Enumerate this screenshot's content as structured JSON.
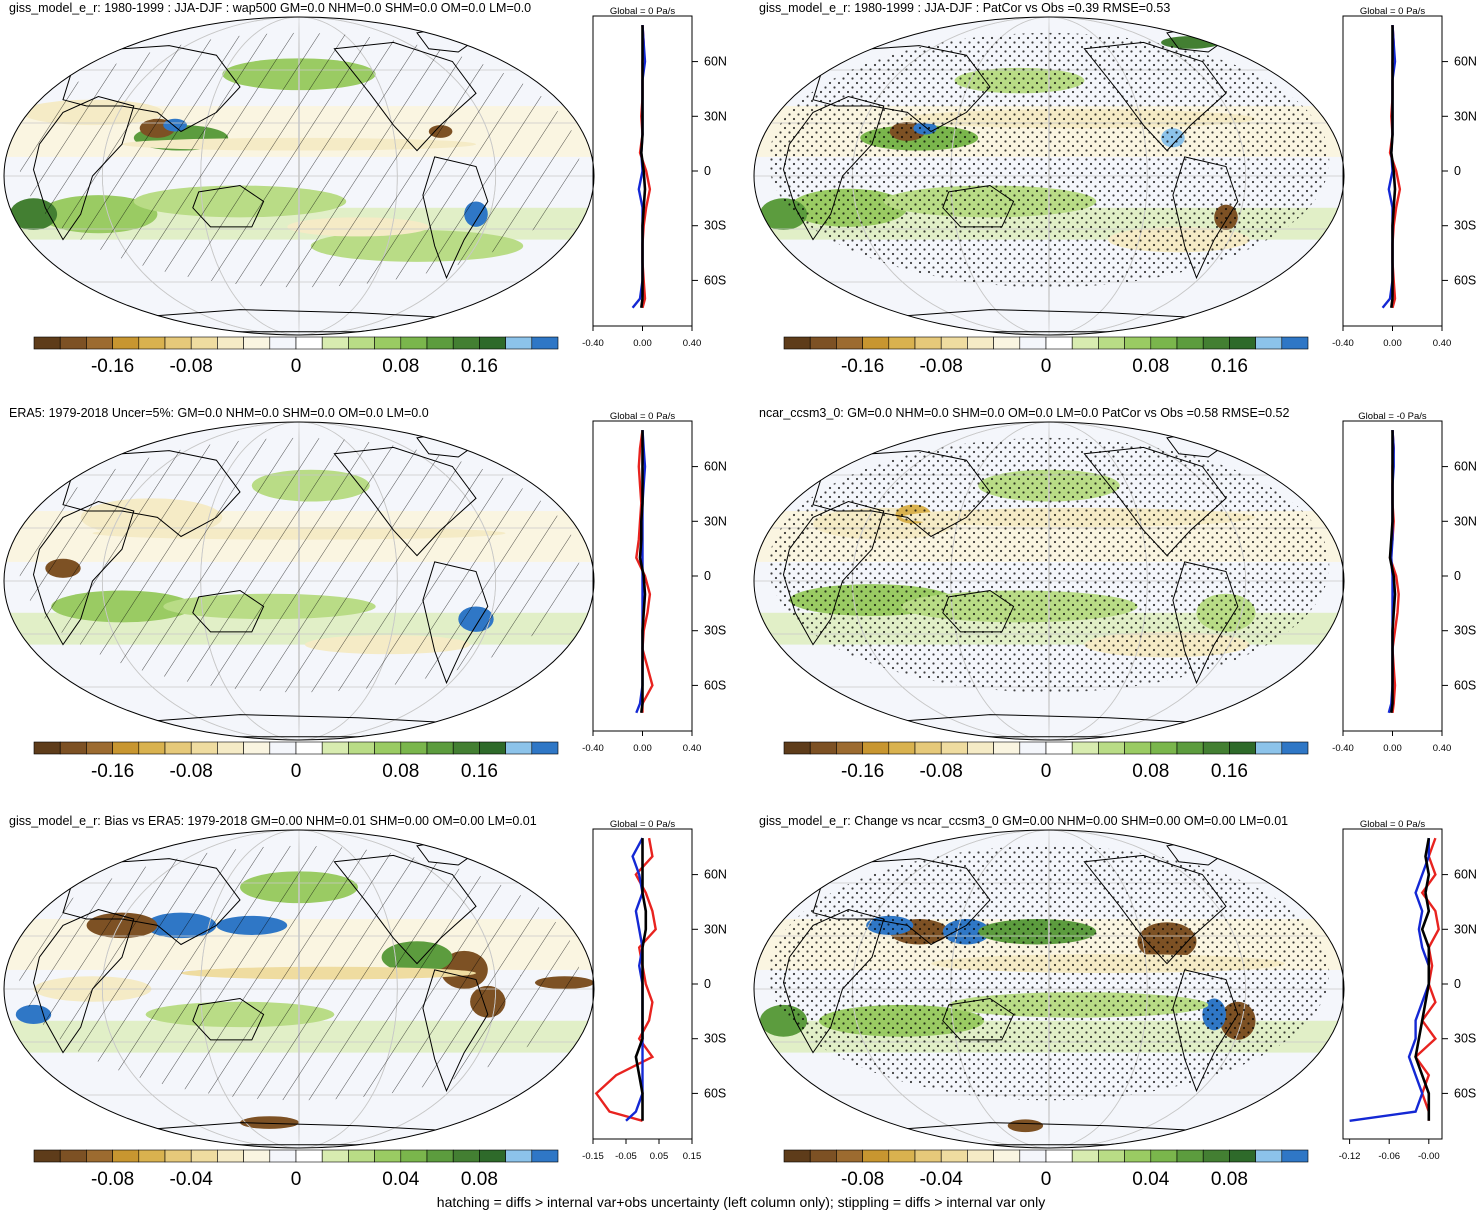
{
  "footer_note": "hatching = diffs > internal var+obs uncertainty (left column only); stippling = diffs > internal var only",
  "colorbar_colors": [
    "#5e3c1a",
    "#7d5124",
    "#9c6b30",
    "#c89630",
    "#d9b24f",
    "#e6c97a",
    "#efdca0",
    "#f5ebc6",
    "#faf5e1",
    "#f4f6fb",
    "#ffffff",
    "#d8ecb0",
    "#b9dc86",
    "#9acb63",
    "#7ab64c",
    "#5c9c3e",
    "#437f32",
    "#2e6a2a",
    "#8cc3ea",
    "#2f77c6"
  ],
  "colors": {
    "obs_line": "#e8231f",
    "model_line": "#1428d4",
    "mean_line": "#000000",
    "coast": "#000000",
    "grid": "#c8c8c8"
  },
  "panels": [
    {
      "title": "giss_model_e_r: 1980-1999 : JJA-DJF : wap500 GM=0.0 NHM=0.0 SHM=0.0 OM=0.0 LM=0.0",
      "pattern": "hatching",
      "side_title": "Global = 0 Pa/s",
      "colorbar_labels": [
        "-0.16",
        "-0.08",
        "0",
        "0.08",
        "0.16"
      ],
      "zonal_xticks": [
        "-0.40",
        "0.00",
        "0.40"
      ],
      "lat_labels": [
        "60N",
        "30N",
        "0",
        "30S",
        "60S"
      ]
    },
    {
      "title": "giss_model_e_r: 1980-1999 : JJA-DJF : PatCor vs Obs =0.39 RMSE=0.53",
      "pattern": "stippling",
      "side_title": "Global = 0 Pa/s",
      "colorbar_labels": [
        "-0.16",
        "-0.08",
        "0",
        "0.08",
        "0.16"
      ],
      "zonal_xticks": [
        "-0.40",
        "0.00",
        "0.40"
      ],
      "lat_labels": [
        "60N",
        "30N",
        "0",
        "30S",
        "60S"
      ]
    },
    {
      "title": "ERA5: 1979-2018 Uncer=5%: GM=0.0 NHM=0.0 SHM=0.0 OM=0.0 LM=0.0",
      "pattern": "hatching",
      "side_title": "Global = 0 Pa/s",
      "colorbar_labels": [
        "-0.16",
        "-0.08",
        "0",
        "0.08",
        "0.16"
      ],
      "zonal_xticks": [
        "-0.40",
        "0.00",
        "0.40"
      ],
      "lat_labels": [
        "60N",
        "30N",
        "0",
        "30S",
        "60S"
      ]
    },
    {
      "title": "ncar_ccsm3_0: GM=0.0 NHM=0.0 SHM=0.0 OM=0.0 LM=0.0 PatCor vs Obs =0.58 RMSE=0.52",
      "pattern": "stippling",
      "side_title": "Global = -0 Pa/s",
      "colorbar_labels": [
        "-0.16",
        "-0.08",
        "0",
        "0.08",
        "0.16"
      ],
      "zonal_xticks": [
        "-0.40",
        "0.00",
        "0.40"
      ],
      "lat_labels": [
        "60N",
        "30N",
        "0",
        "30S",
        "60S"
      ]
    },
    {
      "title": "giss_model_e_r: Bias vs ERA5: 1979-2018 GM=0.00 NHM=0.01 SHM=0.00 OM=0.00 LM=0.01",
      "pattern": "hatching",
      "side_title": "Global = 0 Pa/s",
      "colorbar_labels": [
        "-0.08",
        "-0.04",
        "0",
        "0.04",
        "0.08"
      ],
      "zonal_xticks": [
        "-0.15",
        "-0.05",
        "0.05",
        "0.15"
      ],
      "lat_labels": [
        "60N",
        "30N",
        "0",
        "30S",
        "60S"
      ]
    },
    {
      "title": "giss_model_e_r: Change vs ncar_ccsm3_0 GM=0.00 NHM=0.00 SHM=0.00 OM=0.00 LM=0.01",
      "pattern": "stippling",
      "side_title": "Global = 0 Pa/s",
      "colorbar_labels": [
        "-0.08",
        "-0.04",
        "0",
        "0.04",
        "0.08"
      ],
      "zonal_xticks": [
        "-0.12",
        "-0.06",
        "-0.00"
      ],
      "lat_labels": [
        "60N",
        "30N",
        "0",
        "30S",
        "60S"
      ]
    }
  ],
  "chart_data": [
    {
      "type": "line",
      "title": "Global = 0 Pa/s",
      "xlim": [
        -0.4,
        0.4
      ],
      "xticks": [
        -0.4,
        0,
        0.4
      ],
      "ylabel": "",
      "yticks": [
        "60N",
        "30N",
        "0",
        "30S",
        "60S"
      ],
      "lat": [
        80,
        70,
        60,
        50,
        40,
        30,
        20,
        10,
        0,
        -10,
        -20,
        -30,
        -40,
        -50,
        -60,
        -70,
        -75
      ],
      "series": [
        {
          "values": [
            0.0,
            0.01,
            0.0,
            0.0,
            0.0,
            -0.01,
            0.0,
            -0.02,
            0.03,
            0.06,
            0.03,
            0.01,
            0.0,
            0.0,
            0.01,
            0.02,
            0.0
          ]
        },
        {
          "values": [
            0.0,
            0.01,
            0.02,
            0.0,
            0.0,
            0.0,
            0.0,
            -0.01,
            0.0,
            -0.03,
            0.0,
            0.0,
            0.0,
            0.0,
            0.0,
            -0.02,
            -0.08
          ]
        },
        {
          "values": [
            0.0,
            0.0,
            0.0,
            0.0,
            0.0,
            0.0,
            0.0,
            -0.01,
            0.01,
            0.02,
            0.01,
            0.0,
            0.0,
            0.0,
            0.0,
            0.0,
            -0.01
          ]
        }
      ]
    },
    {
      "type": "line",
      "title": "Global = 0 Pa/s",
      "xlim": [
        -0.4,
        0.4
      ],
      "xticks": [
        -0.4,
        0,
        0.4
      ],
      "ylabel": "",
      "yticks": [
        "60N",
        "30N",
        "0",
        "30S",
        "60S"
      ],
      "lat": [
        80,
        70,
        60,
        50,
        40,
        30,
        20,
        10,
        0,
        -10,
        -20,
        -30,
        -40,
        -50,
        -60,
        -70,
        -75
      ],
      "series": [
        {
          "values": [
            0.0,
            0.01,
            0.0,
            0.0,
            0.0,
            -0.01,
            0.0,
            -0.02,
            0.03,
            0.06,
            0.03,
            0.01,
            0.0,
            0.0,
            0.01,
            0.02,
            0.0
          ]
        },
        {
          "values": [
            0.0,
            0.01,
            0.02,
            0.0,
            0.0,
            0.0,
            0.0,
            -0.01,
            0.0,
            -0.03,
            0.0,
            0.0,
            0.0,
            0.0,
            0.0,
            -0.02,
            -0.08
          ]
        },
        {
          "values": [
            0.0,
            0.0,
            0.0,
            0.0,
            0.0,
            0.0,
            0.0,
            -0.01,
            0.01,
            0.02,
            0.01,
            0.0,
            0.0,
            0.0,
            0.0,
            0.0,
            -0.01
          ]
        }
      ]
    },
    {
      "type": "line",
      "title": "Global = 0 Pa/s",
      "xlim": [
        -0.4,
        0.4
      ],
      "xticks": [
        -0.4,
        0,
        0.4
      ],
      "ylabel": "",
      "yticks": [
        "60N",
        "30N",
        "0",
        "30S",
        "60S"
      ],
      "lat": [
        80,
        70,
        60,
        50,
        40,
        30,
        20,
        10,
        0,
        -10,
        -20,
        -30,
        -40,
        -50,
        -60,
        -70,
        -75
      ],
      "series": [
        {
          "values": [
            0.0,
            -0.02,
            -0.03,
            -0.02,
            -0.01,
            -0.02,
            -0.03,
            -0.05,
            0.02,
            0.06,
            0.04,
            0.01,
            0.0,
            0.04,
            0.08,
            0.0,
            0.0
          ]
        },
        {
          "values": [
            0.0,
            0.01,
            0.02,
            0.01,
            0.0,
            0.0,
            0.0,
            0.0,
            0.0,
            0.0,
            0.0,
            0.0,
            0.0,
            0.0,
            0.0,
            -0.02,
            -0.05
          ]
        },
        {
          "values": [
            0.0,
            0.0,
            0.0,
            0.0,
            0.0,
            -0.01,
            -0.01,
            -0.02,
            0.01,
            0.02,
            0.01,
            0.0,
            0.0,
            0.0,
            0.0,
            0.0,
            -0.01
          ]
        }
      ]
    },
    {
      "type": "line",
      "title": "Global = -0 Pa/s",
      "xlim": [
        -0.4,
        0.4
      ],
      "xticks": [
        -0.4,
        0,
        0.4
      ],
      "ylabel": "",
      "yticks": [
        "60N",
        "30N",
        "0",
        "30S",
        "60S"
      ],
      "lat": [
        80,
        70,
        60,
        50,
        40,
        30,
        20,
        10,
        0,
        -10,
        -20,
        -30,
        -40,
        -50,
        -60,
        -70,
        -75
      ],
      "series": [
        {
          "values": [
            0.0,
            0.01,
            0.0,
            0.0,
            0.0,
            0.01,
            0.0,
            -0.02,
            0.03,
            0.05,
            0.04,
            0.02,
            0.0,
            0.01,
            0.02,
            0.01,
            0.0
          ]
        },
        {
          "values": [
            0.0,
            0.01,
            0.01,
            0.0,
            0.0,
            0.0,
            0.0,
            -0.01,
            0.0,
            0.0,
            0.0,
            0.0,
            0.0,
            0.0,
            0.0,
            -0.01,
            -0.03
          ]
        },
        {
          "values": [
            0.0,
            0.0,
            0.0,
            0.0,
            0.0,
            0.0,
            -0.01,
            -0.02,
            0.01,
            0.02,
            0.01,
            0.0,
            0.0,
            0.0,
            0.0,
            0.0,
            -0.01
          ]
        }
      ]
    },
    {
      "type": "line",
      "title": "Global = 0 Pa/s",
      "xlim": [
        -0.15,
        0.15
      ],
      "xticks": [
        -0.15,
        -0.05,
        0.05,
        0.15
      ],
      "ylabel": "",
      "yticks": [
        "60N",
        "30N",
        "0",
        "30S",
        "60S"
      ],
      "lat": [
        80,
        70,
        60,
        50,
        40,
        30,
        20,
        10,
        0,
        -10,
        -20,
        -30,
        -40,
        -50,
        -60,
        -70,
        -75
      ],
      "series": [
        {
          "values": [
            0.02,
            0.03,
            -0.02,
            0.01,
            0.03,
            0.04,
            -0.01,
            0.0,
            0.01,
            0.03,
            0.02,
            -0.01,
            0.03,
            -0.08,
            -0.14,
            -0.1,
            0.0
          ]
        },
        {
          "values": [
            0.0,
            -0.03,
            -0.01,
            0.0,
            -0.02,
            -0.01,
            0.0,
            -0.01,
            0.0,
            0.0,
            0.0,
            0.0,
            0.0,
            0.0,
            0.0,
            -0.02,
            -0.05
          ]
        },
        {
          "values": [
            0.0,
            0.0,
            0.0,
            0.0,
            0.01,
            0.01,
            0.0,
            0.0,
            0.0,
            0.0,
            0.0,
            0.0,
            -0.02,
            -0.01,
            0.0,
            0.0,
            0.0
          ]
        }
      ]
    },
    {
      "type": "line",
      "title": "Global = 0 Pa/s",
      "xlim": [
        -0.13,
        0.02
      ],
      "xticks": [
        -0.12,
        -0.06,
        -0.0
      ],
      "ylabel": "",
      "yticks": [
        "60N",
        "30N",
        "0",
        "30S",
        "60S"
      ],
      "lat": [
        80,
        70,
        60,
        50,
        40,
        30,
        20,
        10,
        0,
        -10,
        -20,
        -30,
        -40,
        -50,
        -60,
        -70,
        -75
      ],
      "series": [
        {
          "values": [
            0.01,
            0.0,
            0.01,
            -0.01,
            0.01,
            0.015,
            0.0,
            0.005,
            0.0,
            0.01,
            -0.01,
            0.01,
            -0.02,
            0.0,
            -0.01,
            0.0,
            0.0
          ]
        },
        {
          "values": [
            0.0,
            0.0,
            -0.01,
            -0.02,
            -0.01,
            -0.015,
            -0.01,
            0.0,
            0.0,
            -0.01,
            -0.02,
            -0.02,
            -0.03,
            -0.02,
            -0.01,
            -0.02,
            -0.12
          ]
        },
        {
          "values": [
            0.0,
            -0.005,
            0.0,
            -0.005,
            0.0,
            -0.01,
            0.0,
            0.0,
            0.0,
            -0.005,
            -0.01,
            -0.015,
            -0.02,
            -0.01,
            0.0,
            0.0,
            0.0
          ]
        }
      ]
    }
  ]
}
